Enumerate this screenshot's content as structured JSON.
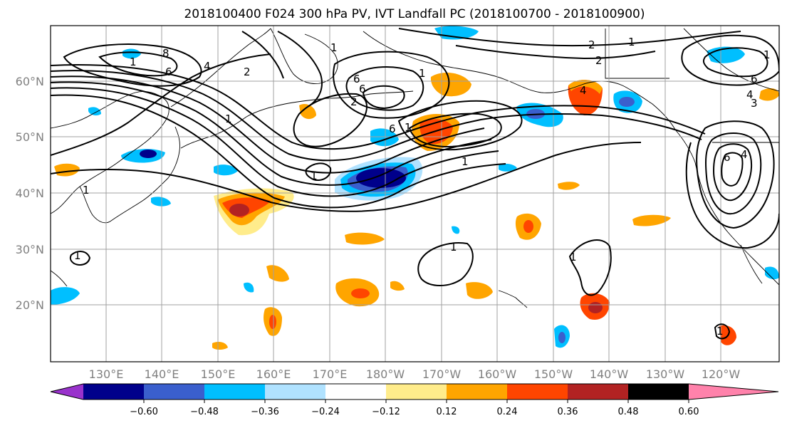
{
  "title": "2018100400 F024 300 hPa PV, IVT Landfall PC (2018100700 - 2018100900)",
  "lon_labels": [
    "130°E",
    "140°E",
    "150°E",
    "160°E",
    "170°E",
    "180°W",
    "170°W",
    "160°W",
    "150°W",
    "140°W",
    "130°W",
    "120°W"
  ],
  "lat_labels": [
    "60°N",
    "50°N",
    "40°N",
    "30°N",
    "20°N"
  ],
  "colorbar": {
    "ticks": [
      "−0.60",
      "−0.48",
      "−0.36",
      "−0.24",
      "−0.12",
      "0.12",
      "0.24",
      "0.36",
      "0.48",
      "0.60"
    ],
    "colors": {
      "under": "#9932cc",
      "bins": [
        "#00008b",
        "#3a5fcd",
        "#00bfff",
        "#b0e2ff",
        "#ffffff",
        "#ffec8b",
        "#ffa500",
        "#ff4500",
        "#b22222"
      ],
      "over": "#ff82ab"
    }
  },
  "contour_labels": [
    "8",
    "6",
    "4",
    "2",
    "1",
    "1",
    "1",
    "6",
    "6",
    "2",
    "1",
    "2",
    "4",
    "6",
    "1",
    "1",
    "1",
    "1",
    "1",
    "2",
    "2",
    "1",
    "4",
    "6",
    "3",
    "1",
    "4",
    "6",
    "1",
    "1",
    "1"
  ]
}
